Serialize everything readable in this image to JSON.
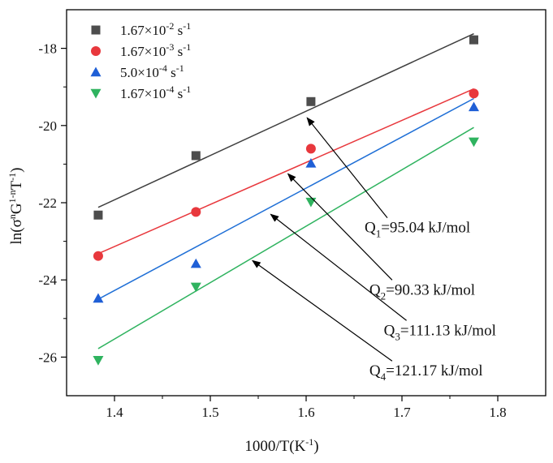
{
  "chart_data": {
    "type": "scatter",
    "title": "",
    "xlabel": {
      "base": "1000/T(K",
      "sup": "-1",
      "tail": ")"
    },
    "ylabel": {
      "parts": [
        {
          "t": "ln(σ",
          "sup": false
        },
        {
          "t": "n",
          "sup": true
        },
        {
          "t": "G",
          "sup": false
        },
        {
          "t": "1-n",
          "sup": true
        },
        {
          "t": "T",
          "sup": false
        },
        {
          "t": "-1",
          "sup": true
        },
        {
          "t": ")",
          "sup": false
        }
      ]
    },
    "xlim": [
      1.35,
      1.85
    ],
    "ylim": [
      -27,
      -17
    ],
    "xticks": [
      1.4,
      1.5,
      1.6,
      1.7,
      1.8
    ],
    "xtick_labels": [
      "1.4",
      "1.5",
      "1.6",
      "1.7",
      "1.8"
    ],
    "yticks": [
      -26,
      -24,
      -22,
      -20,
      -18
    ],
    "ytick_labels": [
      "-26",
      "-24",
      "-22",
      "-20",
      "-18"
    ],
    "grid": false,
    "legend_position": "top-left",
    "series": [
      {
        "name": "1.67×10-2 s-1",
        "legend": {
          "base": "1.67×10",
          "exp": "-2",
          "unit": " s",
          "unit_exp": "-1"
        },
        "marker": "square",
        "color": "#4d4d4d",
        "line_color": "#3f3f3f",
        "x": [
          1.383,
          1.485,
          1.605,
          1.775
        ],
        "y": [
          -22.32,
          -20.78,
          -19.38,
          -17.78
        ],
        "fit": {
          "x": [
            1.383,
            1.775
          ],
          "y": [
            -22.12,
            -17.62
          ]
        }
      },
      {
        "name": "1.67×10-3 s-1",
        "legend": {
          "base": "1.67×10",
          "exp": "-3",
          "unit": " s",
          "unit_exp": "-1"
        },
        "marker": "circle",
        "color": "#e8383d",
        "line_color": "#e8383d",
        "x": [
          1.383,
          1.485,
          1.605,
          1.775
        ],
        "y": [
          -23.38,
          -22.24,
          -20.6,
          -19.17
        ],
        "fit": {
          "x": [
            1.383,
            1.775
          ],
          "y": [
            -23.32,
            -19.05
          ]
        }
      },
      {
        "name": "5.0×10-4 s-1",
        "legend": {
          "base": "5.0×10",
          "exp": "-4",
          "unit": " s",
          "unit_exp": "-1"
        },
        "marker": "triangle-up",
        "color": "#1f5fd6",
        "line_color": "#1f6fd6",
        "x": [
          1.383,
          1.485,
          1.605,
          1.775
        ],
        "y": [
          -24.48,
          -23.58,
          -20.98,
          -19.52
        ],
        "fit": {
          "x": [
            1.383,
            1.775
          ],
          "y": [
            -24.5,
            -19.3
          ]
        }
      },
      {
        "name": "1.67×10-4 s-1",
        "legend": {
          "base": "1.67×10",
          "exp": "-4",
          "unit": " s",
          "unit_exp": "-1"
        },
        "marker": "triangle-down",
        "color": "#2fb35f",
        "line_color": "#2fb35f",
        "x": [
          1.383,
          1.485,
          1.605,
          1.775
        ],
        "y": [
          -26.08,
          -24.18,
          -21.98,
          -20.42
        ],
        "fit": {
          "x": [
            1.383,
            1.775
          ],
          "y": [
            -25.78,
            -20.05
          ]
        }
      }
    ],
    "annotations": [
      {
        "q": "Q",
        "sub": "1",
        "value": "=95.04 kJ/mol",
        "tip": [
          1.601,
          -19.8
        ],
        "text_at": [
          1.661,
          -22.77
        ]
      },
      {
        "q": "Q",
        "sub": "2",
        "value": "=90.33 kJ/mol",
        "tip": [
          1.581,
          -21.25
        ],
        "text_at": [
          1.666,
          -24.38
        ]
      },
      {
        "q": "Q",
        "sub": "3",
        "value": "=111.13 kJ/mol",
        "tip": [
          1.563,
          -22.3
        ],
        "text_at": [
          1.681,
          -25.43
        ]
      },
      {
        "q": "Q",
        "sub": "4",
        "value": "=121.17 kJ/mol",
        "tip": [
          1.544,
          -23.5
        ],
        "text_at": [
          1.666,
          -26.48
        ]
      }
    ]
  }
}
